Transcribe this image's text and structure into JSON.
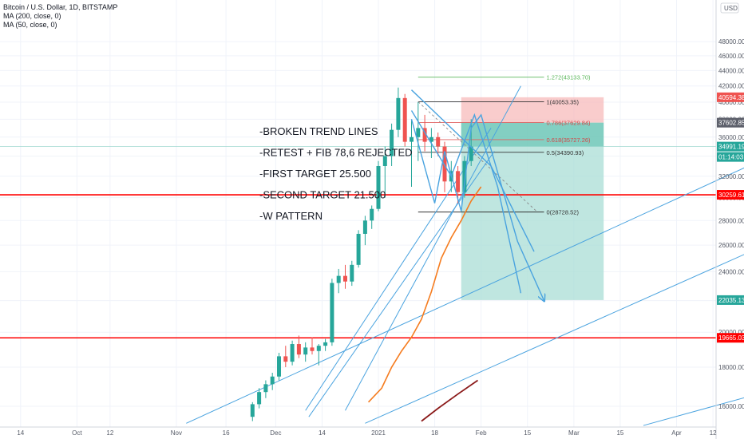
{
  "header": {
    "symbol_line": "Bitcoin / U.S. Dollar, 1D, BITSTAMP",
    "ma200_line": "MA (200, close, 0)",
    "ma50_line": "MA (50, close, 0)",
    "currency": "USD"
  },
  "colors": {
    "up": "#26a69a",
    "down": "#ef5350",
    "support": "#ff0000",
    "trend": "#4aa3df",
    "ma50": "#f57c1f",
    "ma200": "#8b1a1a",
    "fib_ext": "#5cb85c",
    "stop_zone": "#f6b6b6",
    "target_zone": "#a9ddd5",
    "target_zone_dark": "#5cbfae"
  },
  "annotations": [
    "-BROKEN TREND LINES",
    "-RETEST + FIB 78,6 REJECTED",
    "-FIRST TARGET 25.500",
    "-SECOND TARGET 21.500",
    "-W PATTERN"
  ],
  "fib_levels": [
    {
      "label": "1.272(43133.70)",
      "value": 43133.7
    },
    {
      "label": "1(40053.35)",
      "value": 40053.35
    },
    {
      "label": "0.786(37629.84)",
      "value": 37629.84
    },
    {
      "label": "0.618(35727.26)",
      "value": 35727.26
    },
    {
      "label": "0.5(34390.93)",
      "value": 34390.93
    },
    {
      "label": "0(28728.52)",
      "value": 28728.52
    }
  ],
  "price_tags": [
    {
      "label": "40594.38",
      "value": 40594.38,
      "color": "#ef5350"
    },
    {
      "label": "37602.85",
      "value": 37602.85,
      "color": "#5d606b"
    },
    {
      "label": "34991.19",
      "value": 34991.19,
      "color": "#26a69a"
    },
    {
      "label": "01:14:03",
      "value": 33900,
      "color": "#26a69a"
    },
    {
      "label": "30259.61",
      "value": 30259.61,
      "color": "#ff0000"
    },
    {
      "label": "22035.13",
      "value": 22035.13,
      "color": "#26a69a"
    },
    {
      "label": "19665.03",
      "value": 19665.03,
      "color": "#ff0000"
    }
  ],
  "chart_data": {
    "type": "candlestick",
    "title": "Bitcoin / U.S. Dollar, 1D, BITSTAMP",
    "y_scale": "log",
    "ylim": [
      15000,
      48000
    ],
    "y_ticks": [
      "48000.00",
      "46000.00",
      "44000.00",
      "42000.00",
      "40000.00",
      "38000.00",
      "36000.00",
      "34000.00",
      "32000.00",
      "30000.00",
      "28000.00",
      "26000.00",
      "24000.00",
      "22000.00",
      "20000.00",
      "18000.00",
      "16000.00"
    ],
    "y_tick_values": [
      48000,
      46000,
      44000,
      42000,
      40000,
      38000,
      36000,
      34000,
      32000,
      30000,
      28000,
      26000,
      24000,
      22000,
      20000,
      18000,
      16000
    ],
    "x_ticks": [
      "14",
      "Oct",
      "12",
      "Nov",
      "16",
      "Dec",
      "14",
      "2021",
      "18",
      "Feb",
      "15",
      "Mar",
      "15",
      "Apr",
      "12"
    ],
    "x_tick_days": [
      -108,
      -91,
      -81,
      -61,
      -46,
      -31,
      -17,
      0,
      17,
      31,
      45,
      59,
      73,
      90,
      101
    ],
    "x_range_days": [
      -118,
      107
    ],
    "horizontal_levels": [
      30259.61,
      19665.03
    ],
    "short_position": {
      "entry": 37602.85,
      "stop": 40594.38,
      "target": 22035.13,
      "start_day": 25,
      "end_day": 68
    },
    "candles": [
      {
        "d": -38,
        "o": 15500,
        "h": 16200,
        "l": 15300,
        "c": 16100
      },
      {
        "d": -36,
        "o": 16100,
        "h": 16900,
        "l": 15900,
        "c": 16700
      },
      {
        "d": -34,
        "o": 16700,
        "h": 17300,
        "l": 16400,
        "c": 17100
      },
      {
        "d": -32,
        "o": 17100,
        "h": 17700,
        "l": 16800,
        "c": 17500
      },
      {
        "d": -30,
        "o": 17500,
        "h": 18800,
        "l": 17300,
        "c": 18600
      },
      {
        "d": -28,
        "o": 18600,
        "h": 19200,
        "l": 18000,
        "c": 18300
      },
      {
        "d": -26,
        "o": 18300,
        "h": 19500,
        "l": 18100,
        "c": 19300
      },
      {
        "d": -24,
        "o": 19300,
        "h": 19800,
        "l": 18500,
        "c": 18700
      },
      {
        "d": -22,
        "o": 18700,
        "h": 19400,
        "l": 18300,
        "c": 19100
      },
      {
        "d": -20,
        "o": 19100,
        "h": 19700,
        "l": 18700,
        "c": 18900
      },
      {
        "d": -18,
        "o": 18900,
        "h": 19300,
        "l": 18100,
        "c": 19200
      },
      {
        "d": -16,
        "o": 19200,
        "h": 19600,
        "l": 18900,
        "c": 19400
      },
      {
        "d": -14,
        "o": 19400,
        "h": 23500,
        "l": 19200,
        "c": 23200
      },
      {
        "d": -12,
        "o": 23200,
        "h": 24200,
        "l": 22500,
        "c": 23700
      },
      {
        "d": -10,
        "o": 23700,
        "h": 24500,
        "l": 22800,
        "c": 23300
      },
      {
        "d": -8,
        "o": 23300,
        "h": 24800,
        "l": 23000,
        "c": 24500
      },
      {
        "d": -6,
        "o": 24500,
        "h": 27200,
        "l": 24300,
        "c": 26900
      },
      {
        "d": -4,
        "o": 26900,
        "h": 28400,
        "l": 26000,
        "c": 28000
      },
      {
        "d": -2,
        "o": 28000,
        "h": 29300,
        "l": 27300,
        "c": 29000
      },
      {
        "d": 0,
        "o": 29000,
        "h": 33500,
        "l": 28800,
        "c": 33000
      },
      {
        "d": 2,
        "o": 33000,
        "h": 35000,
        "l": 30000,
        "c": 34000
      },
      {
        "d": 4,
        "o": 34000,
        "h": 37500,
        "l": 33000,
        "c": 36800
      },
      {
        "d": 6,
        "o": 36800,
        "h": 41800,
        "l": 36000,
        "c": 40500
      },
      {
        "d": 8,
        "o": 40500,
        "h": 41000,
        "l": 35000,
        "c": 35500
      },
      {
        "d": 10,
        "o": 35500,
        "h": 38000,
        "l": 31000,
        "c": 36000
      },
      {
        "d": 12,
        "o": 36000,
        "h": 40000,
        "l": 33500,
        "c": 37000
      },
      {
        "d": 14,
        "o": 37000,
        "h": 38500,
        "l": 34500,
        "c": 35500
      },
      {
        "d": 16,
        "o": 35500,
        "h": 37000,
        "l": 33800,
        "c": 36000
      },
      {
        "d": 18,
        "o": 36000,
        "h": 36500,
        "l": 34000,
        "c": 35000
      },
      {
        "d": 20,
        "o": 35000,
        "h": 35500,
        "l": 30500,
        "c": 31500
      },
      {
        "d": 22,
        "o": 31500,
        "h": 33500,
        "l": 30500,
        "c": 32500
      },
      {
        "d": 24,
        "o": 32500,
        "h": 33000,
        "l": 29500,
        "c": 30500
      },
      {
        "d": 26,
        "o": 30500,
        "h": 34000,
        "l": 30000,
        "c": 33500
      },
      {
        "d": 28,
        "o": 33500,
        "h": 38000,
        "l": 33000,
        "c": 35000
      }
    ],
    "ma50": [
      {
        "d": -3,
        "v": 16200
      },
      {
        "d": 1,
        "v": 16900
      },
      {
        "d": 4,
        "v": 18000
      },
      {
        "d": 7,
        "v": 18900
      },
      {
        "d": 10,
        "v": 19700
      },
      {
        "d": 13,
        "v": 20800
      },
      {
        "d": 16,
        "v": 22600
      },
      {
        "d": 19,
        "v": 25000
      },
      {
        "d": 22,
        "v": 26600
      },
      {
        "d": 25,
        "v": 28000
      },
      {
        "d": 28,
        "v": 29700
      },
      {
        "d": 31,
        "v": 31000
      }
    ],
    "ma200": [
      {
        "d": 13,
        "v": 15300
      },
      {
        "d": 18,
        "v": 15900
      },
      {
        "d": 24,
        "v": 16600
      },
      {
        "d": 30,
        "v": 17300
      }
    ],
    "trend_lines": [
      {
        "from": [
          -10,
          15800
        ],
        "to": [
          43,
          42000
        ]
      },
      {
        "from": [
          -22,
          15800
        ],
        "to": [
          34,
          37000
        ]
      },
      {
        "from": [
          -21,
          15500
        ],
        "to": [
          35,
          34500
        ]
      },
      {
        "from": [
          -58,
          15200
        ],
        "to": [
          122,
          34600
        ]
      },
      {
        "from": [
          -4,
          15200
        ],
        "to": [
          121,
          26500
        ]
      },
      {
        "from": [
          80,
          15100
        ],
        "to": [
          121,
          16900
        ]
      }
    ],
    "projection_paths": [
      [
        [
          10,
          41500
        ],
        [
          34,
          33000
        ],
        [
          47,
          25500
        ]
      ],
      [
        [
          10,
          39000
        ],
        [
          22,
          32000
        ],
        [
          29,
          38500
        ],
        [
          36,
          31000
        ],
        [
          43,
          22500
        ]
      ],
      [
        [
          10,
          38000
        ],
        [
          17,
          29500
        ],
        [
          20,
          34500
        ],
        [
          25,
          28800
        ],
        [
          28,
          37000
        ],
        [
          31,
          38500
        ],
        [
          42,
          26300
        ],
        [
          50,
          22000
        ]
      ]
    ]
  }
}
